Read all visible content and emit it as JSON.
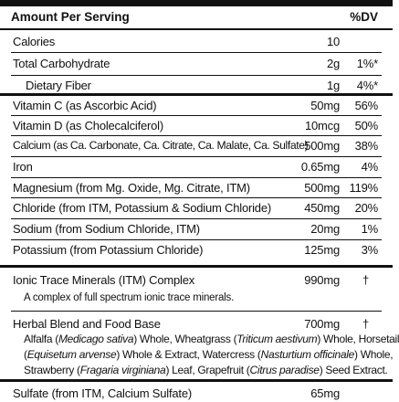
{
  "header": {
    "amount_per_serving": "Amount Per Serving",
    "dv": "%DV"
  },
  "rows": [
    {
      "name": "Calories",
      "amount": "10",
      "dv": ""
    },
    {
      "name": "Total Carbohydrate",
      "amount": "2g",
      "dv": "1%*"
    },
    {
      "name": "Dietary Fiber",
      "amount": "1g",
      "dv": "4%*"
    },
    {
      "name": "Vitamin C (as Ascorbic Acid)",
      "amount": "50mg",
      "dv": "56%"
    },
    {
      "name": "Vitamin D (as Cholecalciferol)",
      "amount": "10mcg",
      "dv": "50%"
    },
    {
      "name": "Calcium (as Ca. Carbonate, Ca. Citrate, Ca. Malate, Ca. Sulfate)",
      "amount": "500mg",
      "dv": "38%"
    },
    {
      "name": "Iron",
      "amount": "0.65mg",
      "dv": "4%"
    },
    {
      "name": "Magnesium (from Mg. Oxide, Mg. Citrate, ITM)",
      "amount": "500mg",
      "dv": "119%"
    },
    {
      "name": "Chloride (from ITM, Potassium & Sodium Chloride)",
      "amount": "450mg",
      "dv": "20%"
    },
    {
      "name": "Sodium (from Sodium Chloride, ITM)",
      "amount": "20mg",
      "dv": "1%"
    },
    {
      "name": "Potassium (from Potassium Chloride)",
      "amount": "125mg",
      "dv": "3%"
    }
  ],
  "itm": {
    "name": "Ionic Trace Minerals (ITM) Complex",
    "amount": "990mg",
    "dv": "†",
    "note": "A complex of full spectrum ionic trace minerals."
  },
  "herbal": {
    "name": "Herbal Blend and Food Base",
    "amount": "700mg",
    "dv": "†",
    "lines": [
      [
        "Alfalfa (",
        "Medicago sativa",
        ") Whole, Wheatgrass (",
        "Triticum aestivum",
        ") Whole, Horsetail"
      ],
      [
        "(",
        "Equisetum arvense",
        ") Whole & Extract, Watercress (",
        "Nasturtium officinale",
        ") Whole,"
      ],
      [
        "Strawberry (",
        "Fragaria virginiana",
        ") Leaf, Grapefruit (",
        "Citrus paradise",
        ") Seed Extract."
      ]
    ]
  },
  "sulfate": {
    "name": "Sulfate (from ITM, Calcium Sulfate)",
    "amount": "65mg",
    "dv": ""
  }
}
